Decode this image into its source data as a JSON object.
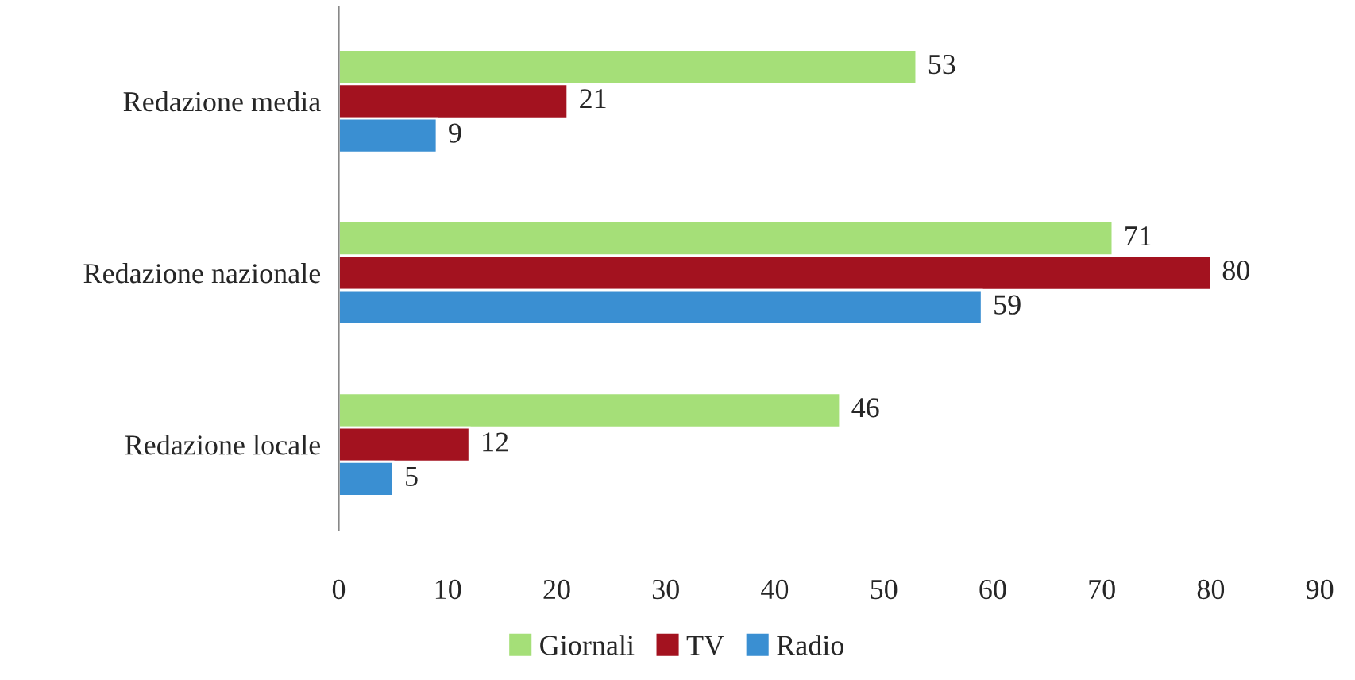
{
  "chart_data": {
    "type": "bar",
    "orientation": "horizontal",
    "categories": [
      "Redazione media",
      "Redazione nazionale",
      "Redazione locale"
    ],
    "series": [
      {
        "name": "Giornali",
        "color": "#a5df78",
        "values": [
          53,
          71,
          46
        ]
      },
      {
        "name": "TV",
        "color": "#a3121f",
        "values": [
          21,
          80,
          12
        ]
      },
      {
        "name": "Radio",
        "color": "#3a8fd2",
        "values": [
          9,
          59,
          5
        ]
      }
    ],
    "xlim": [
      0,
      90
    ],
    "xticks": [
      0,
      10,
      20,
      30,
      40,
      50,
      60,
      70,
      80,
      90
    ],
    "grid": false,
    "legend": "bottom",
    "data_labels": true
  }
}
